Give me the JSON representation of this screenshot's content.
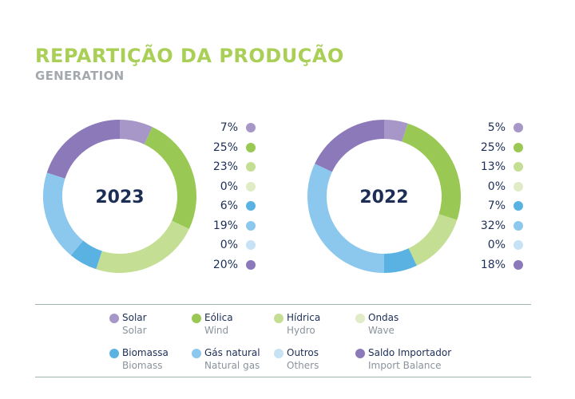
{
  "header": {
    "title": "REPARTIÇÃO DA PRODUÇÃO",
    "subtitle": "GENERATION"
  },
  "colors": {
    "solar": "#a797c9",
    "eolica": "#9ac855",
    "hidrica": "#c4df93",
    "ondas": "#dfecc6",
    "biomassa": "#5ab2e3",
    "gas_natural": "#8cc8ed",
    "outros": "#c6e2f4",
    "saldo_importador": "#8c79b9",
    "title_green": "#a9cf57",
    "text_navy": "#1c2e55"
  },
  "chart_data": [
    {
      "type": "pie",
      "center_label": "2023",
      "categories": [
        "Solar",
        "Eólica",
        "Hídrica",
        "Ondas",
        "Biomassa",
        "Gás natural",
        "Outros",
        "Saldo Importador"
      ],
      "values": [
        7,
        25,
        23,
        0,
        6,
        19,
        0,
        20
      ],
      "labels": [
        "7%",
        "25%",
        "23%",
        "0%",
        "6%",
        "19%",
        "0%",
        "20%"
      ],
      "colors": [
        "#a797c9",
        "#9ac855",
        "#c4df93",
        "#dfecc6",
        "#5ab2e3",
        "#8cc8ed",
        "#c6e2f4",
        "#8c79b9"
      ]
    },
    {
      "type": "pie",
      "center_label": "2022",
      "categories": [
        "Solar",
        "Eólica",
        "Hídrica",
        "Ondas",
        "Biomassa",
        "Gás natural",
        "Outros",
        "Saldo Importador"
      ],
      "values": [
        5,
        25,
        13,
        0,
        7,
        32,
        0,
        18
      ],
      "labels": [
        "5%",
        "25%",
        "13%",
        "0%",
        "7%",
        "32%",
        "0%",
        "18%"
      ],
      "colors": [
        "#a797c9",
        "#9ac855",
        "#c4df93",
        "#dfecc6",
        "#5ab2e3",
        "#8cc8ed",
        "#c6e2f4",
        "#8c79b9"
      ]
    }
  ],
  "legend": {
    "items": [
      {
        "pt": "Solar",
        "en": "Solar",
        "color": "#a797c9"
      },
      {
        "pt": "Eólica",
        "en": "Wind",
        "color": "#9ac855"
      },
      {
        "pt": "Hídrica",
        "en": "Hydro",
        "color": "#c4df93"
      },
      {
        "pt": "Ondas",
        "en": "Wave",
        "color": "#dfecc6"
      },
      {
        "pt": "Biomassa",
        "en": "Biomass",
        "color": "#5ab2e3"
      },
      {
        "pt": "Gás natural",
        "en": "Natural gas",
        "color": "#8cc8ed"
      },
      {
        "pt": "Outros",
        "en": "Others",
        "color": "#c6e2f4"
      },
      {
        "pt": "Saldo Importador",
        "en": "Import Balance",
        "color": "#8c79b9"
      }
    ]
  }
}
